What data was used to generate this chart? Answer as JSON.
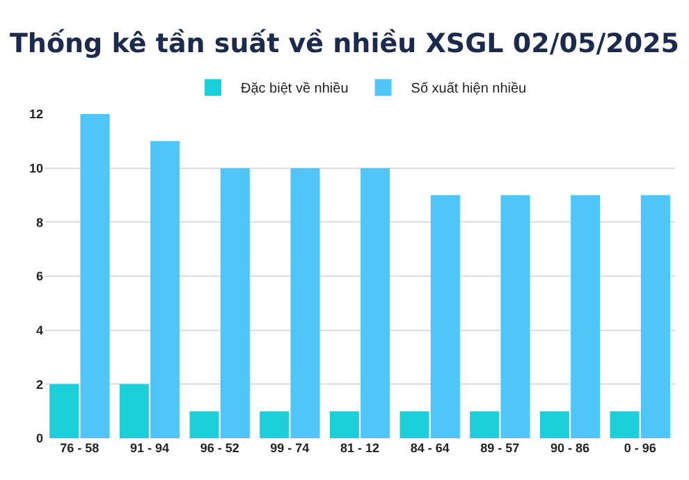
{
  "chart_data": {
    "type": "bar",
    "title": "Thống kê tần suất về nhiều XSGL 02/05/2025",
    "categories": [
      "76 - 58",
      "91 - 94",
      "96 - 52",
      "99 - 74",
      "81 - 12",
      "84 - 64",
      "89 - 57",
      "90 - 86",
      "0 - 96"
    ],
    "series": [
      {
        "name": "Đặc biệt về nhiều",
        "color": "#1ccfd9",
        "values": [
          2,
          2,
          1,
          1,
          1,
          1,
          1,
          1,
          1
        ]
      },
      {
        "name": "Số xuất hiện nhiều",
        "color": "#4fc6f7",
        "values": [
          12,
          11,
          10,
          10,
          10,
          9,
          9,
          9,
          9
        ]
      }
    ],
    "ylim": [
      0,
      12
    ],
    "yticks": [
      0,
      2,
      4,
      6,
      8,
      10,
      12
    ],
    "grid": "y",
    "legend": "top"
  }
}
